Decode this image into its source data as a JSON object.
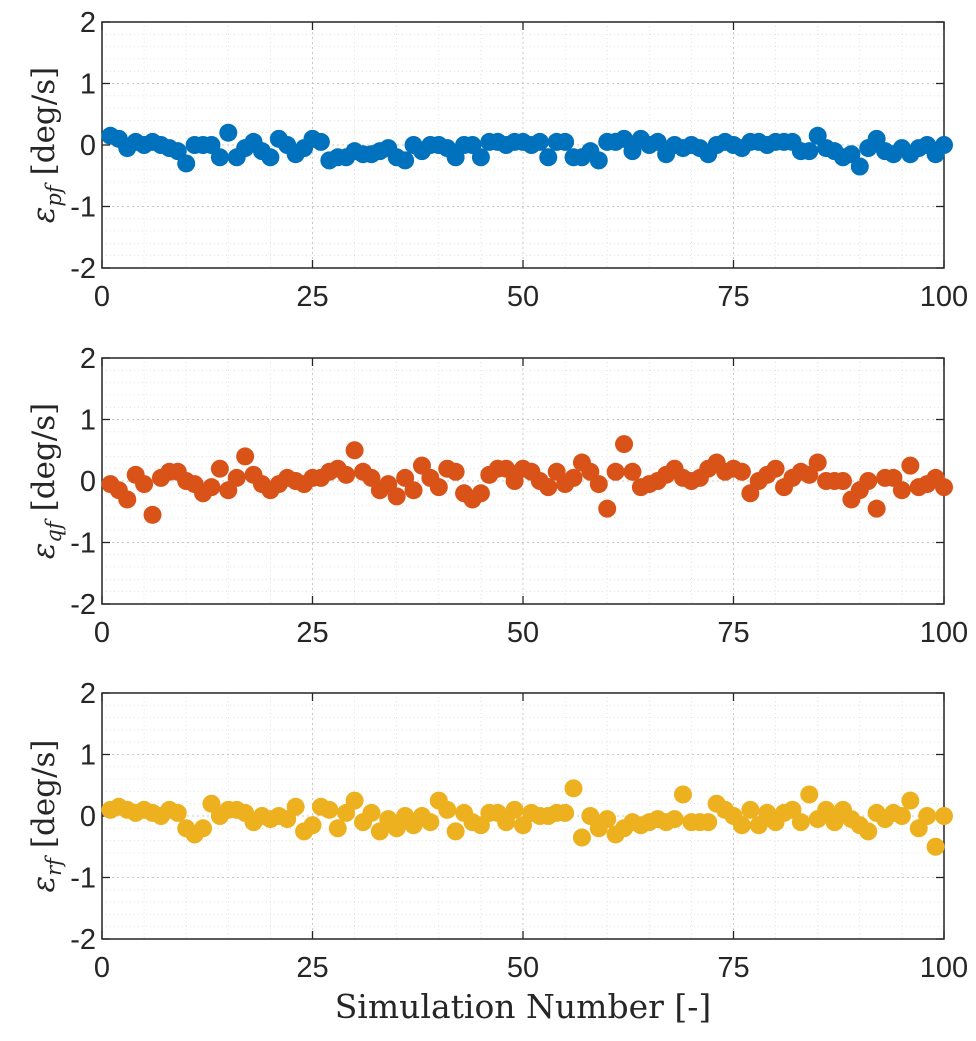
{
  "chart_data": [
    {
      "type": "scatter",
      "ylabel_symbol": "ε",
      "ylabel_subscript": "pf",
      "ylabel_units": "[deg/s]",
      "ylim": [
        -2,
        2
      ],
      "xlim": [
        0,
        100
      ],
      "yticks": [
        "2",
        "1",
        "0",
        "-1",
        "-2"
      ],
      "xticks": [
        "0",
        "25",
        "50",
        "75",
        "100"
      ],
      "color": "#0072BD",
      "grid": true,
      "x": [
        1,
        2,
        3,
        4,
        5,
        6,
        7,
        8,
        9,
        10,
        11,
        12,
        13,
        14,
        15,
        16,
        17,
        18,
        19,
        20,
        21,
        22,
        23,
        24,
        25,
        26,
        27,
        28,
        29,
        30,
        31,
        32,
        33,
        34,
        35,
        36,
        37,
        38,
        39,
        40,
        41,
        42,
        43,
        44,
        45,
        46,
        47,
        48,
        49,
        50,
        51,
        52,
        53,
        54,
        55,
        56,
        57,
        58,
        59,
        60,
        61,
        62,
        63,
        64,
        65,
        66,
        67,
        68,
        69,
        70,
        71,
        72,
        73,
        74,
        75,
        76,
        77,
        78,
        79,
        80,
        81,
        82,
        83,
        84,
        85,
        86,
        87,
        88,
        89,
        90,
        91,
        92,
        93,
        94,
        95,
        96,
        97,
        98,
        99,
        100
      ],
      "values": [
        0.15,
        0.1,
        -0.05,
        0.05,
        0,
        0.05,
        0,
        -0.05,
        -0.1,
        -0.3,
        0,
        0,
        0,
        -0.2,
        0.2,
        -0.2,
        -0.05,
        0.05,
        -0.1,
        -0.2,
        0.1,
        0,
        -0.15,
        -0.05,
        0.1,
        0.05,
        -0.25,
        -0.2,
        -0.2,
        -0.1,
        -0.15,
        -0.15,
        -0.1,
        -0.05,
        -0.2,
        -0.25,
        0,
        -0.1,
        0,
        0,
        -0.05,
        -0.2,
        0,
        0,
        -0.2,
        0.05,
        0.05,
        0,
        0.05,
        0.05,
        0,
        0.05,
        -0.2,
        0.05,
        0.05,
        -0.2,
        -0.2,
        -0.1,
        -0.25,
        0.05,
        0.05,
        0.1,
        -0.1,
        0.1,
        0,
        0.05,
        -0.15,
        0,
        -0.05,
        0,
        -0.05,
        -0.15,
        0,
        0.05,
        0,
        -0.05,
        0.05,
        0.05,
        0,
        0.05,
        0.05,
        0.05,
        -0.1,
        -0.1,
        0.15,
        -0.05,
        -0.1,
        -0.2,
        -0.15,
        -0.35,
        -0.05,
        0.1,
        -0.1,
        -0.15,
        -0.05,
        -0.15,
        -0.05,
        0,
        -0.15,
        0
      ]
    },
    {
      "type": "scatter",
      "ylabel_symbol": "ε",
      "ylabel_subscript": "qf",
      "ylabel_units": "[deg/s]",
      "ylim": [
        -2,
        2
      ],
      "xlim": [
        0,
        100
      ],
      "yticks": [
        "2",
        "1",
        "0",
        "-1",
        "-2"
      ],
      "xticks": [
        "0",
        "25",
        "50",
        "75",
        "100"
      ],
      "color": "#D95319",
      "grid": true,
      "x": [
        1,
        2,
        3,
        4,
        5,
        6,
        7,
        8,
        9,
        10,
        11,
        12,
        13,
        14,
        15,
        16,
        17,
        18,
        19,
        20,
        21,
        22,
        23,
        24,
        25,
        26,
        27,
        28,
        29,
        30,
        31,
        32,
        33,
        34,
        35,
        36,
        37,
        38,
        39,
        40,
        41,
        42,
        43,
        44,
        45,
        46,
        47,
        48,
        49,
        50,
        51,
        52,
        53,
        54,
        55,
        56,
        57,
        58,
        59,
        60,
        61,
        62,
        63,
        64,
        65,
        66,
        67,
        68,
        69,
        70,
        71,
        72,
        73,
        74,
        75,
        76,
        77,
        78,
        79,
        80,
        81,
        82,
        83,
        84,
        85,
        86,
        87,
        88,
        89,
        90,
        91,
        92,
        93,
        94,
        95,
        96,
        97,
        98,
        99,
        100
      ],
      "values": [
        -0.05,
        -0.15,
        -0.3,
        0.1,
        -0.05,
        -0.55,
        0.05,
        0.15,
        0.15,
        0,
        -0.05,
        -0.2,
        -0.1,
        0.2,
        -0.15,
        0.05,
        0.4,
        0.1,
        -0.05,
        -0.15,
        -0.05,
        0.05,
        0,
        -0.05,
        0.05,
        0.05,
        0.15,
        0.2,
        0.1,
        0.5,
        0.15,
        0.05,
        -0.15,
        -0.05,
        -0.25,
        0.05,
        -0.15,
        0.25,
        0.05,
        -0.1,
        0.2,
        0.15,
        -0.2,
        -0.3,
        -0.2,
        0.1,
        0.2,
        0.2,
        0,
        0.2,
        0.15,
        0,
        -0.1,
        0.15,
        -0.05,
        0.05,
        0.3,
        0.15,
        -0.05,
        -0.45,
        0.15,
        0.6,
        0.15,
        -0.1,
        -0.05,
        0,
        0.1,
        0.2,
        0.05,
        0,
        0.05,
        0.2,
        0.3,
        0.15,
        0.2,
        0.15,
        -0.2,
        0,
        0.1,
        0.2,
        -0.1,
        0.05,
        0.15,
        0.1,
        0.3,
        0,
        0,
        0,
        -0.3,
        -0.15,
        0,
        -0.45,
        0.05,
        0.05,
        -0.15,
        0.25,
        -0.1,
        -0.05,
        0.05,
        -0.1
      ]
    },
    {
      "type": "scatter",
      "ylabel_symbol": "ε",
      "ylabel_subscript": "rf",
      "ylabel_units": "[deg/s]",
      "ylim": [
        -2,
        2
      ],
      "xlim": [
        0,
        100
      ],
      "yticks": [
        "2",
        "1",
        "0",
        "-1",
        "-2"
      ],
      "xticks": [
        "0",
        "25",
        "50",
        "75",
        "100"
      ],
      "color": "#EDB120",
      "grid": true,
      "x": [
        1,
        2,
        3,
        4,
        5,
        6,
        7,
        8,
        9,
        10,
        11,
        12,
        13,
        14,
        15,
        16,
        17,
        18,
        19,
        20,
        21,
        22,
        23,
        24,
        25,
        26,
        27,
        28,
        29,
        30,
        31,
        32,
        33,
        34,
        35,
        36,
        37,
        38,
        39,
        40,
        41,
        42,
        43,
        44,
        45,
        46,
        47,
        48,
        49,
        50,
        51,
        52,
        53,
        54,
        55,
        56,
        57,
        58,
        59,
        60,
        61,
        62,
        63,
        64,
        65,
        66,
        67,
        68,
        69,
        70,
        71,
        72,
        73,
        74,
        75,
        76,
        77,
        78,
        79,
        80,
        81,
        82,
        83,
        84,
        85,
        86,
        87,
        88,
        89,
        90,
        91,
        92,
        93,
        94,
        95,
        96,
        97,
        98,
        99,
        100
      ],
      "values": [
        0.1,
        0.15,
        0.1,
        0.05,
        0.1,
        0.05,
        0,
        0.1,
        0.05,
        -0.2,
        -0.3,
        -0.2,
        0.2,
        0,
        0.1,
        0.1,
        0.05,
        -0.1,
        0,
        -0.05,
        0,
        -0.05,
        0.15,
        -0.25,
        -0.15,
        0.15,
        0.1,
        -0.2,
        0.05,
        0.25,
        -0.1,
        0.05,
        -0.25,
        -0.05,
        -0.2,
        0,
        -0.15,
        0,
        -0.1,
        0.25,
        0.1,
        -0.25,
        0.05,
        -0.1,
        -0.15,
        0.05,
        0.05,
        -0.1,
        0.1,
        -0.15,
        0.05,
        0,
        0,
        0.05,
        0.05,
        0.45,
        -0.35,
        0,
        -0.2,
        -0.05,
        -0.3,
        -0.2,
        -0.1,
        -0.15,
        -0.1,
        -0.05,
        -0.1,
        -0.05,
        0.35,
        -0.1,
        -0.1,
        -0.1,
        0.2,
        0.1,
        0,
        -0.15,
        0.1,
        -0.15,
        0.05,
        -0.1,
        0.05,
        0.1,
        -0.1,
        0.35,
        -0.05,
        0.1,
        -0.1,
        0.1,
        -0.05,
        -0.15,
        -0.25,
        0.05,
        -0.05,
        0.05,
        0,
        0.25,
        -0.2,
        0,
        -0.5,
        0
      ]
    }
  ],
  "xlabel": "Simulation Number [-]"
}
